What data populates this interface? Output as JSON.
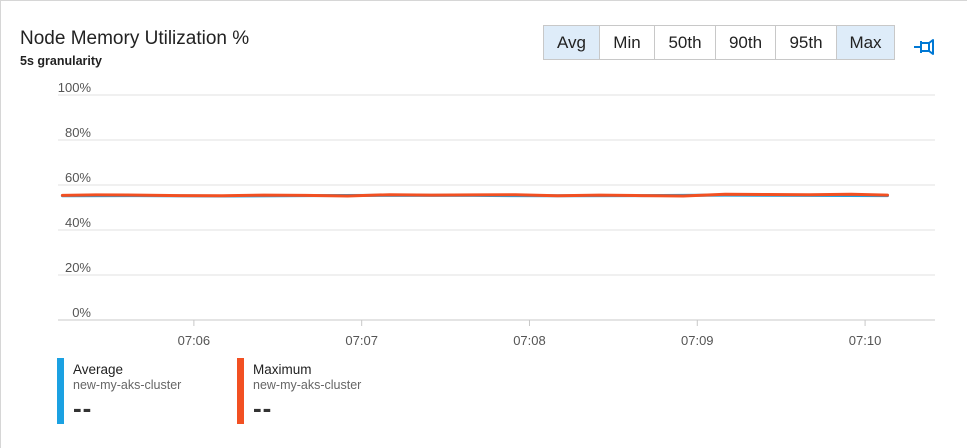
{
  "header": {
    "title": "Node Memory Utilization %",
    "granularity": "5s granularity"
  },
  "aggregations": [
    {
      "label": "Avg",
      "active": true
    },
    {
      "label": "Min",
      "active": false
    },
    {
      "label": "50th",
      "active": false
    },
    {
      "label": "90th",
      "active": false
    },
    {
      "label": "95th",
      "active": false
    },
    {
      "label": "Max",
      "active": true
    }
  ],
  "icons": {
    "pin": "pin-icon"
  },
  "colors": {
    "average": "#1ba1e2",
    "maximum": "#f25022",
    "grid": "#e1e1e1",
    "active_button_bg": "#deecf9",
    "pin": "#0078d4"
  },
  "chart_data": {
    "type": "line",
    "title": "Node Memory Utilization %",
    "subtitle": "5s granularity",
    "xlabel": "",
    "ylabel": "",
    "ylim": [
      0,
      100
    ],
    "xlim": [
      "07:05:25",
      "07:10:25"
    ],
    "y_ticks": [
      "0%",
      "20%",
      "40%",
      "60%",
      "80%",
      "100%"
    ],
    "x_ticks": [
      "07:06",
      "07:07",
      "07:08",
      "07:09",
      "07:10"
    ],
    "grid": true,
    "legend_position": "bottom-left",
    "series": [
      {
        "name": "Average",
        "resource": "new-my-aks-cluster",
        "summary_value": "--",
        "color": "#1ba1e2",
        "x": [
          "07:05:13",
          "07:05:40",
          "07:06:10",
          "07:06:40",
          "07:07:10",
          "07:07:40",
          "07:08:10",
          "07:08:40",
          "07:09:10",
          "07:09:40",
          "07:10:08"
        ],
        "values": [
          55.2,
          55.3,
          55.1,
          55.3,
          55.4,
          55.4,
          55.2,
          55.3,
          55.5,
          55.4,
          55.3
        ]
      },
      {
        "name": "Maximum",
        "resource": "new-my-aks-cluster",
        "summary_value": "--",
        "color": "#f25022",
        "x": [
          "07:05:13",
          "07:05:25",
          "07:05:40",
          "07:05:55",
          "07:06:10",
          "07:06:25",
          "07:06:40",
          "07:06:55",
          "07:07:10",
          "07:07:25",
          "07:07:40",
          "07:07:55",
          "07:08:10",
          "07:08:25",
          "07:08:40",
          "07:08:55",
          "07:09:10",
          "07:09:25",
          "07:09:40",
          "07:09:55",
          "07:10:08"
        ],
        "values": [
          55.4,
          55.6,
          55.5,
          55.3,
          55.2,
          55.5,
          55.4,
          55.1,
          55.7,
          55.5,
          55.6,
          55.7,
          55.2,
          55.5,
          55.3,
          55.1,
          55.9,
          55.8,
          55.7,
          55.9,
          55.5
        ]
      }
    ]
  }
}
